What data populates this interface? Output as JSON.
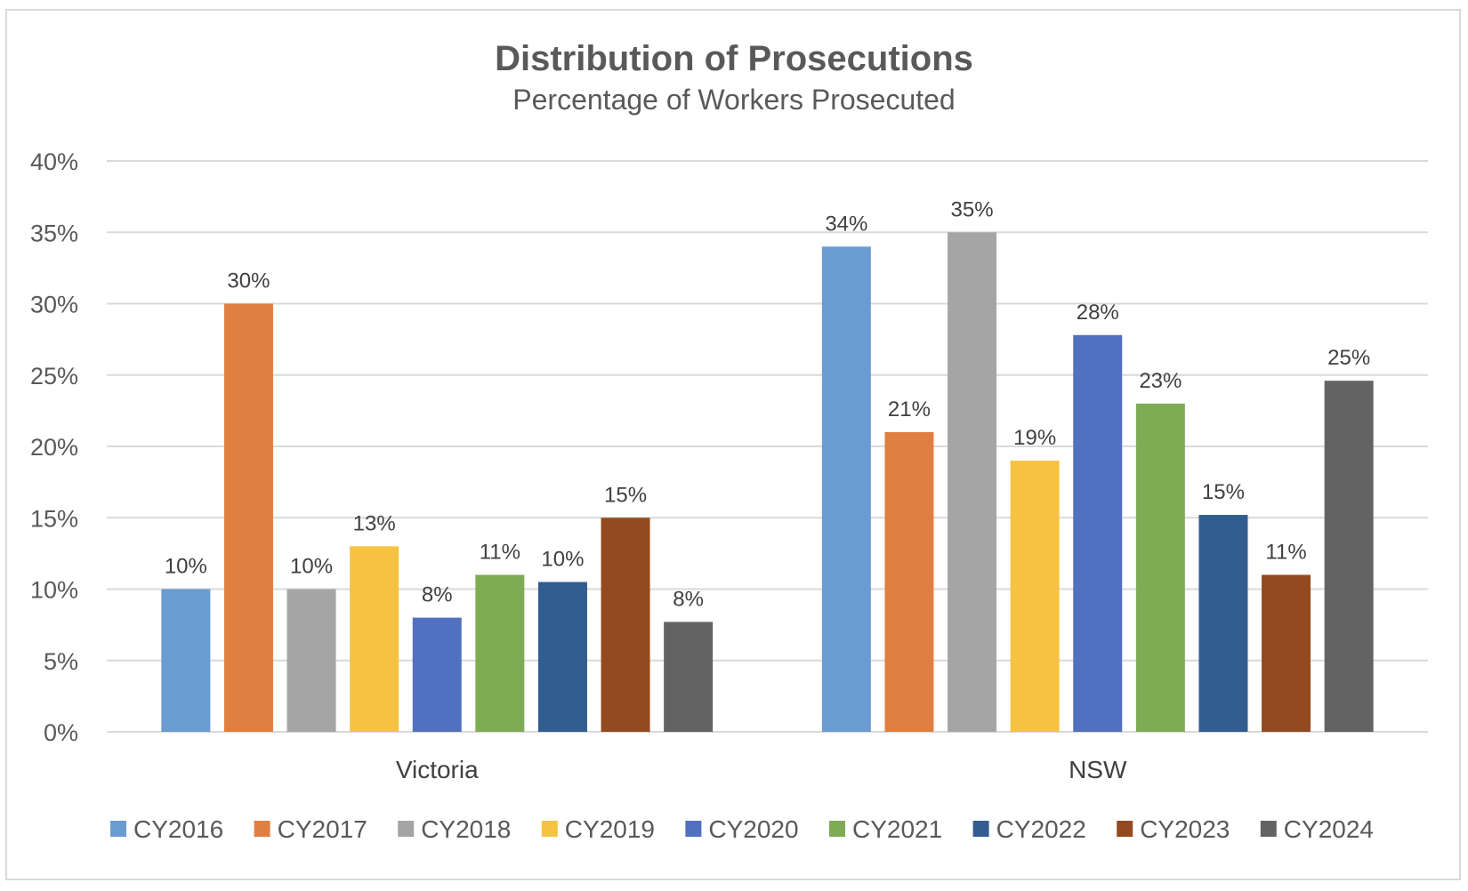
{
  "chart_data": {
    "type": "bar",
    "title": "Distribution of Prosecutions",
    "subtitle": "Percentage of Workers Prosecuted",
    "categories": [
      "Victoria",
      "NSW"
    ],
    "ylim": [
      0,
      40
    ],
    "yticks": [
      0,
      5,
      10,
      15,
      20,
      25,
      30,
      35,
      40
    ],
    "ytick_labels": [
      "0%",
      "5%",
      "10%",
      "15%",
      "20%",
      "25%",
      "30%",
      "35%",
      "40%"
    ],
    "grid": true,
    "legend_position": "bottom",
    "series": [
      {
        "name": "CY2016",
        "color": "#6a9bd1",
        "values": [
          10,
          34
        ],
        "labels": [
          "10%",
          "34%"
        ]
      },
      {
        "name": "CY2017",
        "color": "#e07f42",
        "values": [
          30,
          21
        ],
        "labels": [
          "30%",
          "21%"
        ]
      },
      {
        "name": "CY2018",
        "color": "#a5a5a5",
        "values": [
          10,
          35
        ],
        "labels": [
          "10%",
          "35%"
        ]
      },
      {
        "name": "CY2019",
        "color": "#f5c242",
        "values": [
          13,
          19
        ],
        "labels": [
          "13%",
          "19%"
        ]
      },
      {
        "name": "CY2020",
        "color": "#5270c0",
        "values": [
          8,
          27.8
        ],
        "labels": [
          "8%",
          "28%"
        ]
      },
      {
        "name": "CY2021",
        "color": "#7fab55",
        "values": [
          11,
          23
        ],
        "labels": [
          "11%",
          "23%"
        ]
      },
      {
        "name": "CY2022",
        "color": "#325d91",
        "values": [
          10.5,
          15.2
        ],
        "labels": [
          "10%",
          "15%"
        ]
      },
      {
        "name": "CY2023",
        "color": "#944a20",
        "values": [
          15,
          11
        ],
        "labels": [
          "15%",
          "11%"
        ]
      },
      {
        "name": "CY2024",
        "color": "#636363",
        "values": [
          7.7,
          24.6
        ],
        "labels": [
          "8%",
          "25%"
        ]
      }
    ]
  }
}
